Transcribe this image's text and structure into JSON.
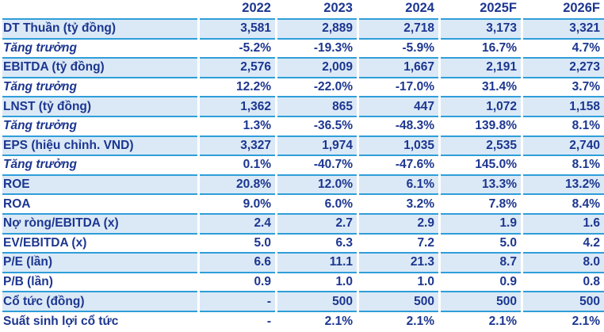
{
  "colors": {
    "text_navy": "#1c3690",
    "separator_blue": "#2e9ed9",
    "stripe_light_blue": "#dbe9f6",
    "background": "#ffffff"
  },
  "chart_data": {
    "type": "table",
    "columns": [
      "",
      "2022",
      "2023",
      "2024",
      "2025F",
      "2026F"
    ],
    "rows": [
      {
        "label": "DT Thuần (tỷ đồng)",
        "italic": false,
        "shaded": true,
        "values": [
          "3,581",
          "2,889",
          "2,718",
          "3,173",
          "3,321"
        ]
      },
      {
        "label": "Tăng trưởng",
        "italic": true,
        "shaded": false,
        "values": [
          "-5.2%",
          "-19.3%",
          "-5.9%",
          "16.7%",
          "4.7%"
        ]
      },
      {
        "label": "EBITDA (tỷ đồng)",
        "italic": false,
        "shaded": true,
        "values": [
          "2,576",
          "2,009",
          "1,667",
          "2,191",
          "2,273"
        ]
      },
      {
        "label": "Tăng trưởng",
        "italic": true,
        "shaded": false,
        "values": [
          "12.2%",
          "-22.0%",
          "-17.0%",
          "31.4%",
          "3.7%"
        ]
      },
      {
        "label": "LNST (tỷ đồng)",
        "italic": false,
        "shaded": true,
        "values": [
          "1,362",
          "865",
          "447",
          "1,072",
          "1,158"
        ]
      },
      {
        "label": "Tăng trưởng",
        "italic": true,
        "shaded": false,
        "values": [
          "1.3%",
          "-36.5%",
          "-48.3%",
          "139.8%",
          "8.1%"
        ]
      },
      {
        "label": "EPS (hiệu chỉnh. VND)",
        "italic": false,
        "shaded": true,
        "values": [
          "3,327",
          "1,974",
          "1,035",
          "2,535",
          "2,740"
        ]
      },
      {
        "label": "Tăng trưởng",
        "italic": true,
        "shaded": false,
        "values": [
          "0.1%",
          "-40.7%",
          "-47.6%",
          "145.0%",
          "8.1%"
        ]
      },
      {
        "label": "ROE",
        "italic": false,
        "shaded": true,
        "values": [
          "20.8%",
          "12.0%",
          "6.1%",
          "13.3%",
          "13.2%"
        ]
      },
      {
        "label": "ROA",
        "italic": false,
        "shaded": false,
        "values": [
          "9.0%",
          "6.0%",
          "3.2%",
          "7.8%",
          "8.4%"
        ]
      },
      {
        "label": "Nợ ròng/EBITDA (x)",
        "italic": false,
        "shaded": true,
        "values": [
          "2.4",
          "2.7",
          "2.9",
          "1.9",
          "1.6"
        ]
      },
      {
        "label": "EV/EBITDA (x)",
        "italic": false,
        "shaded": false,
        "values": [
          "5.0",
          "6.3",
          "7.2",
          "5.0",
          "4.2"
        ]
      },
      {
        "label": "P/E (lần)",
        "italic": false,
        "shaded": true,
        "values": [
          "6.6",
          "11.1",
          "21.3",
          "8.7",
          "8.0"
        ]
      },
      {
        "label": "P/B (lần)",
        "italic": false,
        "shaded": false,
        "values": [
          "0.9",
          "1.0",
          "1.0",
          "0.9",
          "0.8"
        ]
      },
      {
        "label": "Cổ tức (đồng)",
        "italic": false,
        "shaded": true,
        "values": [
          "-",
          "500",
          "500",
          "500",
          "500"
        ]
      },
      {
        "label": "Suất sinh lợi cổ tức",
        "italic": false,
        "shaded": false,
        "values": [
          "-",
          "2.1%",
          "2.1%",
          "2.1%",
          "2.1%"
        ]
      }
    ]
  }
}
